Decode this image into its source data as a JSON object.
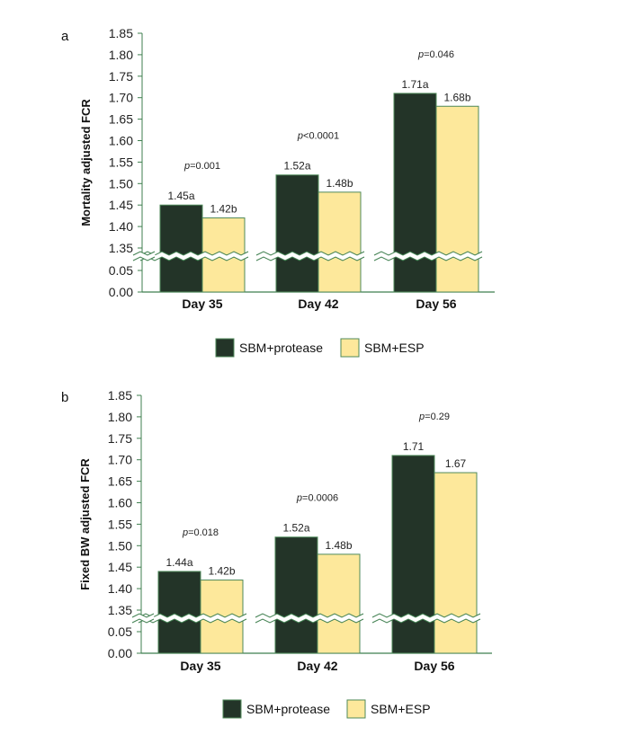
{
  "colors": {
    "protease": "#233428",
    "esp": "#fde89b",
    "axis": "#3f7f4f",
    "bar_edge": "#4f8a5a"
  },
  "chart_data": [
    {
      "type": "bar",
      "panel_label": "a",
      "ylabel": "Mortality adjusted FCR",
      "categories": [
        "Day 35",
        "Day 42",
        "Day 56"
      ],
      "yticks": [
        "0.00",
        "0.05",
        "1.35",
        "1.40",
        "1.45",
        "1.50",
        "1.55",
        "1.60",
        "1.65",
        "1.70",
        "1.75",
        "1.80",
        "1.85"
      ],
      "ylim": [
        0,
        1.85
      ],
      "axis_break": [
        0.05,
        1.35
      ],
      "series": [
        {
          "name": "SBM+protease",
          "values": [
            1.45,
            1.52,
            1.71
          ],
          "labels": [
            "1.45a",
            "1.52a",
            "1.71a"
          ]
        },
        {
          "name": "SBM+ESP",
          "values": [
            1.42,
            1.48,
            1.68
          ],
          "labels": [
            "1.42b",
            "1.48b",
            "1.68b"
          ]
        }
      ],
      "p_values": [
        "=0.001",
        "<0.0001",
        "=0.046"
      ],
      "p_symbol": "p",
      "legend": "bottom"
    },
    {
      "type": "bar",
      "panel_label": "b",
      "ylabel": "Fixed BW adjusted FCR",
      "categories": [
        "Day 35",
        "Day 42",
        "Day 56"
      ],
      "yticks": [
        "0.00",
        "0.05",
        "1.35",
        "1.40",
        "1.45",
        "1.50",
        "1.55",
        "1.60",
        "1.65",
        "1.70",
        "1.75",
        "1.80",
        "1.85"
      ],
      "ylim": [
        0,
        1.85
      ],
      "axis_break": [
        0.05,
        1.35
      ],
      "series": [
        {
          "name": "SBM+protease",
          "values": [
            1.44,
            1.52,
            1.71
          ],
          "labels": [
            "1.44a",
            "1.52a",
            "1.71"
          ]
        },
        {
          "name": "SBM+ESP",
          "values": [
            1.42,
            1.48,
            1.67
          ],
          "labels": [
            "1.42b",
            "1.48b",
            "1.67"
          ]
        }
      ],
      "p_values": [
        "=0.018",
        "=0.0006",
        "=0.29"
      ],
      "p_symbol": "p",
      "legend": "bottom"
    }
  ]
}
